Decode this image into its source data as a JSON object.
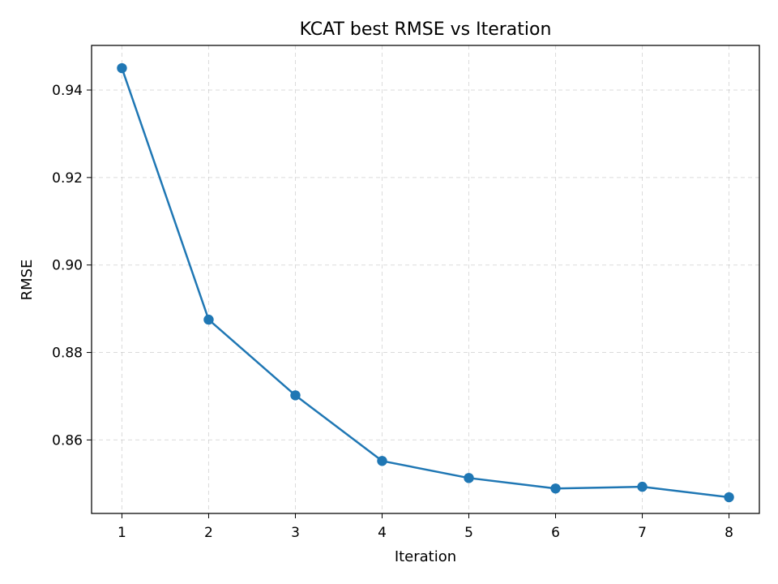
{
  "chart_data": {
    "type": "line",
    "title": "KCAT best RMSE vs Iteration",
    "xlabel": "Iteration",
    "ylabel": "RMSE",
    "x": [
      1,
      2,
      3,
      4,
      5,
      6,
      7,
      8
    ],
    "series": [
      {
        "values": [
          0.945,
          0.8875,
          0.8702,
          0.8552,
          0.8513,
          0.8489,
          0.8493,
          0.8469
        ]
      }
    ],
    "xlim": [
      0.65,
      8.35
    ],
    "ylim": [
      0.8432,
      0.9502
    ],
    "xticks": [
      1,
      2,
      3,
      4,
      5,
      6,
      7,
      8
    ],
    "yticks": [
      0.86,
      0.88,
      0.9,
      0.92,
      0.94
    ],
    "ytick_labels": [
      "0.86",
      "0.88",
      "0.90",
      "0.92",
      "0.94"
    ],
    "grid": true,
    "colors": {
      "line": "#1f77b4",
      "marker": "#1f77b4",
      "axis": "#000000",
      "grid": "#b0b0b0"
    }
  }
}
